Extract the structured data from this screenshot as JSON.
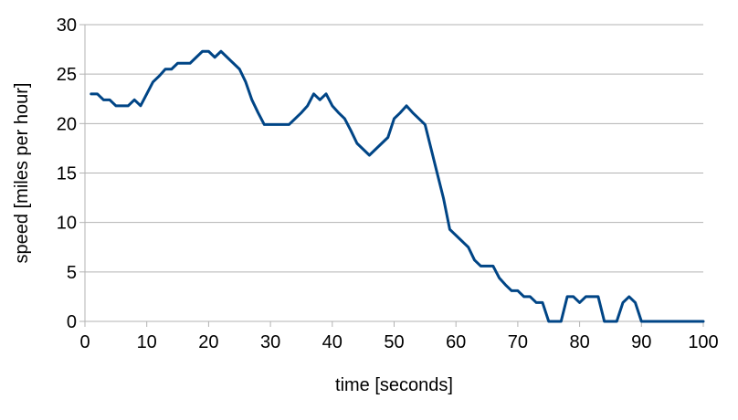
{
  "chart_data": {
    "type": "line",
    "title": "",
    "xlabel": "time [seconds]",
    "ylabel": "speed [miles per hour]",
    "xlim": [
      0,
      100
    ],
    "ylim": [
      0,
      30
    ],
    "xticks": [
      0,
      10,
      20,
      30,
      40,
      50,
      60,
      70,
      80,
      90,
      100
    ],
    "yticks": [
      0,
      5,
      10,
      15,
      20,
      25,
      30
    ],
    "grid": "horizontal",
    "legend": "none",
    "series": [
      {
        "color": "#004586",
        "x": [
          1,
          2,
          3,
          4,
          5,
          6,
          7,
          8,
          9,
          10,
          11,
          12,
          13,
          14,
          15,
          16,
          17,
          18,
          19,
          20,
          21,
          22,
          23,
          24,
          25,
          26,
          27,
          28,
          29,
          30,
          31,
          32,
          33,
          34,
          35,
          36,
          37,
          38,
          39,
          40,
          41,
          42,
          43,
          44,
          45,
          46,
          47,
          48,
          49,
          50,
          51,
          52,
          53,
          54,
          55,
          56,
          57,
          58,
          59,
          60,
          61,
          62,
          63,
          64,
          65,
          66,
          67,
          68,
          69,
          70,
          71,
          72,
          73,
          74,
          75,
          76,
          77,
          78,
          79,
          80,
          81,
          82,
          83,
          84,
          85,
          86,
          87,
          88,
          89,
          90,
          91,
          92,
          93,
          94,
          95,
          96,
          97,
          98,
          99,
          100
        ],
        "y": [
          23,
          23,
          22.4,
          22.4,
          21.8,
          21.8,
          21.8,
          22.4,
          21.8,
          23,
          24.2,
          24.8,
          25.5,
          25.5,
          26.1,
          26.1,
          26.1,
          26.7,
          27.3,
          27.3,
          26.7,
          27.3,
          26.7,
          26.1,
          25.5,
          24.2,
          22.4,
          21.1,
          19.9,
          19.9,
          19.9,
          19.9,
          19.9,
          20.5,
          21.1,
          21.8,
          23,
          22.4,
          23,
          21.8,
          21.1,
          20.5,
          19.3,
          18,
          17.4,
          16.8,
          17.4,
          18,
          18.6,
          20.5,
          21.1,
          21.8,
          21.1,
          20.5,
          19.9,
          17.4,
          14.9,
          12.4,
          9.3,
          8.7,
          8.1,
          7.5,
          6.2,
          5.6,
          5.6,
          5.6,
          4.4,
          3.7,
          3.1,
          3.1,
          2.5,
          2.5,
          1.9,
          1.9,
          0,
          0,
          0,
          2.5,
          2.5,
          1.9,
          2.5,
          2.5,
          2.5,
          0,
          0,
          0,
          1.9,
          2.5,
          1.9,
          0,
          0,
          0,
          0,
          0,
          0,
          0,
          0,
          0,
          0,
          0
        ]
      }
    ]
  }
}
